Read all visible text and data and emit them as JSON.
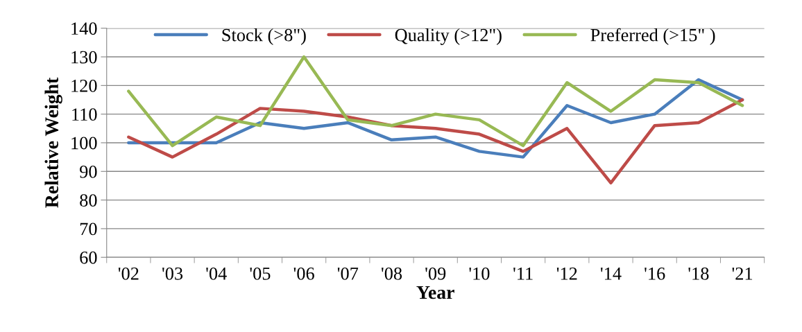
{
  "chart_data": {
    "type": "line",
    "xlabel": "Year",
    "ylabel": "Relative Weight",
    "categories": [
      "'02",
      "'03",
      "'04",
      "'05",
      "'06",
      "'07",
      "'08",
      "'09",
      "'10",
      "'11",
      "'12",
      "'14",
      "'16",
      "'18",
      "'21"
    ],
    "series": [
      {
        "name": "Stock (>8\")",
        "color": "#4a7ebb",
        "values": [
          100,
          100,
          100,
          107,
          105,
          107,
          101,
          102,
          97,
          95,
          113,
          107,
          110,
          122,
          115
        ]
      },
      {
        "name": "Quality (>12\")",
        "color": "#be4b48",
        "values": [
          102,
          95,
          103,
          112,
          111,
          109,
          106,
          105,
          103,
          97,
          105,
          86,
          106,
          107,
          115
        ]
      },
      {
        "name": "Preferred (>15\" )",
        "color": "#98b954",
        "values": [
          118,
          99,
          109,
          106,
          130,
          108,
          106,
          110,
          108,
          99,
          121,
          111,
          122,
          121,
          113
        ]
      }
    ],
    "ylim": [
      60,
      140
    ],
    "yticks": [
      60,
      70,
      80,
      90,
      100,
      110,
      120,
      130,
      140
    ],
    "grid": "y",
    "legend": "top",
    "marker": "none",
    "line_style": "solid"
  }
}
